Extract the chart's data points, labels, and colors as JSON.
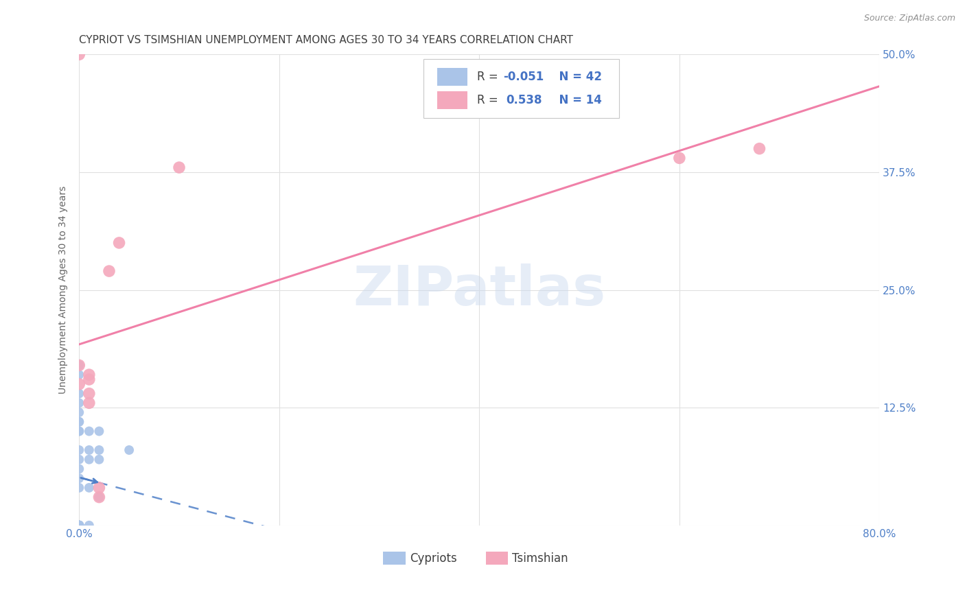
{
  "title": "CYPRIOT VS TSIMSHIAN UNEMPLOYMENT AMONG AGES 30 TO 34 YEARS CORRELATION CHART",
  "source": "Source: ZipAtlas.com",
  "ylabel": "Unemployment Among Ages 30 to 34 years",
  "xlim": [
    0.0,
    0.8
  ],
  "ylim": [
    0.0,
    0.5
  ],
  "xticks": [
    0.0,
    0.2,
    0.4,
    0.6,
    0.8
  ],
  "yticks": [
    0.0,
    0.125,
    0.25,
    0.375,
    0.5
  ],
  "xticklabels": [
    "0.0%",
    "",
    "",
    "",
    "80.0%"
  ],
  "yticklabels": [
    "",
    "12.5%",
    "25.0%",
    "37.5%",
    "50.0%"
  ],
  "background_color": "#ffffff",
  "grid_color": "#e0e0e0",
  "cypriots_color": "#aac4e8",
  "tsimshian_color": "#f4a8bc",
  "cypriot_R": -0.051,
  "cypriot_N": 42,
  "tsimshian_R": 0.538,
  "tsimshian_N": 14,
  "cypriot_line_color": "#5080c8",
  "tsimshian_line_color": "#f080a8",
  "cypriots_x": [
    0.0,
    0.0,
    0.0,
    0.0,
    0.0,
    0.0,
    0.0,
    0.0,
    0.0,
    0.0,
    0.0,
    0.0,
    0.0,
    0.0,
    0.0,
    0.0,
    0.0,
    0.0,
    0.0,
    0.0,
    0.0,
    0.0,
    0.0,
    0.0,
    0.0,
    0.0,
    0.0,
    0.0,
    0.0,
    0.0,
    0.0,
    0.0,
    0.01,
    0.01,
    0.01,
    0.01,
    0.01,
    0.02,
    0.02,
    0.02,
    0.02,
    0.05
  ],
  "cypriots_y": [
    0.0,
    0.0,
    0.0,
    0.0,
    0.0,
    0.0,
    0.0,
    0.0,
    0.0,
    0.0,
    0.0,
    0.0,
    0.0,
    0.0,
    0.0,
    0.0,
    0.0,
    0.0,
    0.04,
    0.05,
    0.06,
    0.07,
    0.08,
    0.1,
    0.1,
    0.11,
    0.11,
    0.12,
    0.13,
    0.14,
    0.16,
    0.17,
    0.0,
    0.04,
    0.07,
    0.08,
    0.1,
    0.03,
    0.07,
    0.08,
    0.1,
    0.08
  ],
  "tsimshian_x": [
    0.0,
    0.0,
    0.0,
    0.01,
    0.01,
    0.01,
    0.01,
    0.02,
    0.02,
    0.03,
    0.04,
    0.1,
    0.6,
    0.68
  ],
  "tsimshian_y": [
    0.15,
    0.17,
    0.5,
    0.13,
    0.14,
    0.155,
    0.16,
    0.03,
    0.04,
    0.27,
    0.3,
    0.38,
    0.39,
    0.4
  ],
  "title_fontsize": 11,
  "axis_label_fontsize": 10,
  "tick_fontsize": 11,
  "legend_fontsize": 12,
  "title_color": "#404040",
  "tick_color": "#5080c8",
  "source_color": "#909090"
}
